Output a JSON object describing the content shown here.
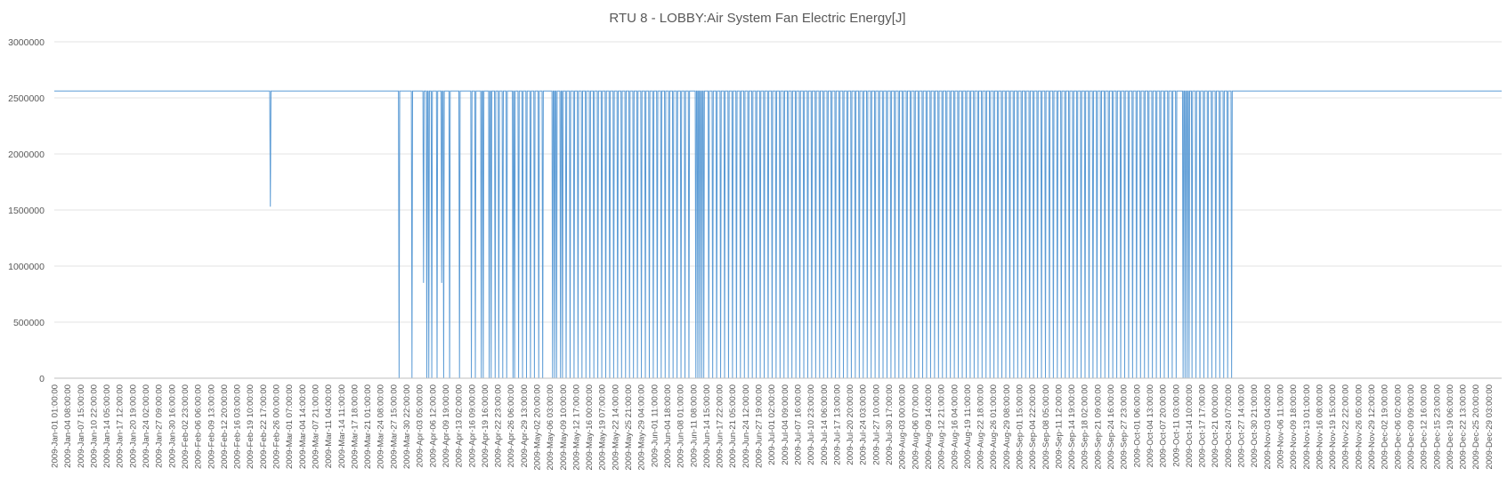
{
  "chart_data": {
    "type": "line",
    "title": "RTU 8 - LOBBY:Air System Fan Electric Energy[J]",
    "xlabel": "",
    "ylabel": "",
    "ylim": [
      0,
      3000000
    ],
    "yticks": [
      0,
      500000,
      1000000,
      1500000,
      2000000,
      2500000,
      3000000
    ],
    "ytick_labels": [
      "0",
      "500000",
      "1000000",
      "1500000",
      "2000000",
      "2500000",
      "3000000"
    ],
    "grid": true,
    "legend": "none",
    "line_color": "#5b9bd5",
    "x_tick_labels": [
      "2009-Jan-01 01:00:00",
      "2009-Jan-04 08:00:00",
      "2009-Jan-07 15:00:00",
      "2009-Jan-10 22:00:00",
      "2009-Jan-14 05:00:00",
      "2009-Jan-17 12:00:00",
      "2009-Jan-20 19:00:00",
      "2009-Jan-24 02:00:00",
      "2009-Jan-27 09:00:00",
      "2009-Jan-30 16:00:00",
      "2009-Feb-02 23:00:00",
      "2009-Feb-06 06:00:00",
      "2009-Feb-09 13:00:00",
      "2009-Feb-12 20:00:00",
      "2009-Feb-16 03:00:00",
      "2009-Feb-19 10:00:00",
      "2009-Feb-22 17:00:00",
      "2009-Feb-26 00:00:00",
      "2009-Mar-01 07:00:00",
      "2009-Mar-04 14:00:00",
      "2009-Mar-07 21:00:00",
      "2009-Mar-11 04:00:00",
      "2009-Mar-14 11:00:00",
      "2009-Mar-17 18:00:00",
      "2009-Mar-21 01:00:00",
      "2009-Mar-24 08:00:00",
      "2009-Mar-27 15:00:00",
      "2009-Mar-30 22:00:00",
      "2009-Apr-03 05:00:00",
      "2009-Apr-06 12:00:00",
      "2009-Apr-09 19:00:00",
      "2009-Apr-13 02:00:00",
      "2009-Apr-16 09:00:00",
      "2009-Apr-19 16:00:00",
      "2009-Apr-22 23:00:00",
      "2009-Apr-26 06:00:00",
      "2009-Apr-29 13:00:00",
      "2009-May-02 20:00:00",
      "2009-May-06 03:00:00",
      "2009-May-09 10:00:00",
      "2009-May-12 17:00:00",
      "2009-May-16 00:00:00",
      "2009-May-19 07:00:00",
      "2009-May-22 14:00:00",
      "2009-May-25 21:00:00",
      "2009-May-29 04:00:00",
      "2009-Jun-01 11:00:00",
      "2009-Jun-04 18:00:00",
      "2009-Jun-08 01:00:00",
      "2009-Jun-11 08:00:00",
      "2009-Jun-14 15:00:00",
      "2009-Jun-17 22:00:00",
      "2009-Jun-21 05:00:00",
      "2009-Jun-24 12:00:00",
      "2009-Jun-27 19:00:00",
      "2009-Jul-01 02:00:00",
      "2009-Jul-04 09:00:00",
      "2009-Jul-07 16:00:00",
      "2009-Jul-10 23:00:00",
      "2009-Jul-14 06:00:00",
      "2009-Jul-17 13:00:00",
      "2009-Jul-20 20:00:00",
      "2009-Jul-24 03:00:00",
      "2009-Jul-27 10:00:00",
      "2009-Jul-30 17:00:00",
      "2009-Aug-03 00:00:00",
      "2009-Aug-06 07:00:00",
      "2009-Aug-09 14:00:00",
      "2009-Aug-12 21:00:00",
      "2009-Aug-16 04:00:00",
      "2009-Aug-19 11:00:00",
      "2009-Aug-22 18:00:00",
      "2009-Aug-26 01:00:00",
      "2009-Aug-29 08:00:00",
      "2009-Sep-01 15:00:00",
      "2009-Sep-04 22:00:00",
      "2009-Sep-08 05:00:00",
      "2009-Sep-11 12:00:00",
      "2009-Sep-14 19:00:00",
      "2009-Sep-18 02:00:00",
      "2009-Sep-21 09:00:00",
      "2009-Sep-24 16:00:00",
      "2009-Sep-27 23:00:00",
      "2009-Oct-01 06:00:00",
      "2009-Oct-04 13:00:00",
      "2009-Oct-07 20:00:00",
      "2009-Oct-11 03:00:00",
      "2009-Oct-14 10:00:00",
      "2009-Oct-17 17:00:00",
      "2009-Oct-21 00:00:00",
      "2009-Oct-24 07:00:00",
      "2009-Oct-27 14:00:00",
      "2009-Oct-30 21:00:00",
      "2009-Nov-03 04:00:00",
      "2009-Nov-06 11:00:00",
      "2009-Nov-09 18:00:00",
      "2009-Nov-13 01:00:00",
      "2009-Nov-16 08:00:00",
      "2009-Nov-19 15:00:00",
      "2009-Nov-22 22:00:00",
      "2009-Nov-26 05:00:00",
      "2009-Nov-29 12:00:00",
      "2009-Dec-02 19:00:00",
      "2009-Dec-06 02:00:00",
      "2009-Dec-09 09:00:00",
      "2009-Dec-12 16:00:00",
      "2009-Dec-15 23:00:00",
      "2009-Dec-19 06:00:00",
      "2009-Dec-22 13:00:00",
      "2009-Dec-25 20:00:00",
      "2009-Dec-29 03:00:00"
    ],
    "series": [
      {
        "baseline": 2562000,
        "dips": [
          {
            "x": "2009-Feb-24 14:00:00",
            "y": 1530000
          },
          {
            "x": "2009-Mar-29 02:00:00",
            "y": 0
          },
          {
            "x": "2009-Apr-01 08:00:00",
            "y": 0
          },
          {
            "x": "2009-Apr-04 06:00:00",
            "y": 850000
          },
          {
            "x": "2009-Apr-05 02:00:00",
            "y": 0
          },
          {
            "x": "2009-Apr-05 14:00:00",
            "y": 0
          },
          {
            "x": "2009-Apr-06 08:00:00",
            "y": 0
          },
          {
            "x": "2009-Apr-07 16:00:00",
            "y": 0
          },
          {
            "x": "2009-Apr-08 20:00:00",
            "y": 850000
          },
          {
            "x": "2009-Apr-09 08:00:00",
            "y": 0
          },
          {
            "x": "2009-Apr-10 20:00:00",
            "y": 0
          },
          {
            "x": "2009-Apr-13 08:00:00",
            "y": 0
          },
          {
            "x": "2009-Apr-16 08:00:00",
            "y": 0
          },
          {
            "x": "2009-Apr-17 08:00:00",
            "y": 0
          },
          {
            "x": "2009-Apr-18 20:00:00",
            "y": 0
          },
          {
            "x": "2009-Apr-19 08:00:00",
            "y": 0
          },
          {
            "x": "2009-Apr-20 20:00:00",
            "y": 0
          },
          {
            "x": "2009-Apr-21 08:00:00",
            "y": 0
          },
          {
            "x": "2009-Apr-22 08:00:00",
            "y": 0
          },
          {
            "x": "2009-Apr-26 20:00:00",
            "y": 0
          },
          {
            "x": "2009-May-03 08:00:00",
            "y": 0
          },
          {
            "x": "2009-May-04 08:00:00",
            "y": 0
          },
          {
            "x": "2009-May-06 20:00:00",
            "y": 0
          },
          {
            "x": "2009-May-07 08:00:00",
            "y": 0
          },
          {
            "x": "2009-May-07 20:00:00",
            "y": 0
          },
          {
            "x": "2009-May-08 20:00:00",
            "y": 0
          },
          {
            "x": "2009-May-09 08:00:00",
            "y": 0
          },
          {
            "x": "2009-Jun-12 00:00:00",
            "y": 0
          },
          {
            "x": "2009-Jun-12 12:00:00",
            "y": 0
          },
          {
            "x": "2009-Jun-13 00:00:00",
            "y": 0
          },
          {
            "x": "2009-Jun-13 12:00:00",
            "y": 0
          },
          {
            "x": "2009-Jun-14 00:00:00",
            "y": 0
          },
          {
            "x": "2009-Oct-13 00:00:00",
            "y": 0
          },
          {
            "x": "2009-Oct-13 12:00:00",
            "y": 0
          },
          {
            "x": "2009-Oct-14 00:00:00",
            "y": 0
          },
          {
            "x": "2009-Oct-14 12:00:00",
            "y": 0
          }
        ],
        "daily_dips_to_zero": [
          {
            "from": "2009-Apr-23",
            "to": "2009-Apr-25",
            "time": "06:00:00"
          },
          {
            "from": "2009-Apr-27",
            "to": "2009-May-02",
            "time": "06:00:00"
          },
          {
            "from": "2009-May-10",
            "to": "2009-Jun-10",
            "time": "06:00:00"
          },
          {
            "from": "2009-Jun-15",
            "to": "2009-Oct-11",
            "time": "06:00:00"
          },
          {
            "from": "2009-Oct-15",
            "to": "2009-Oct-25",
            "time": "06:00:00"
          }
        ]
      }
    ]
  }
}
